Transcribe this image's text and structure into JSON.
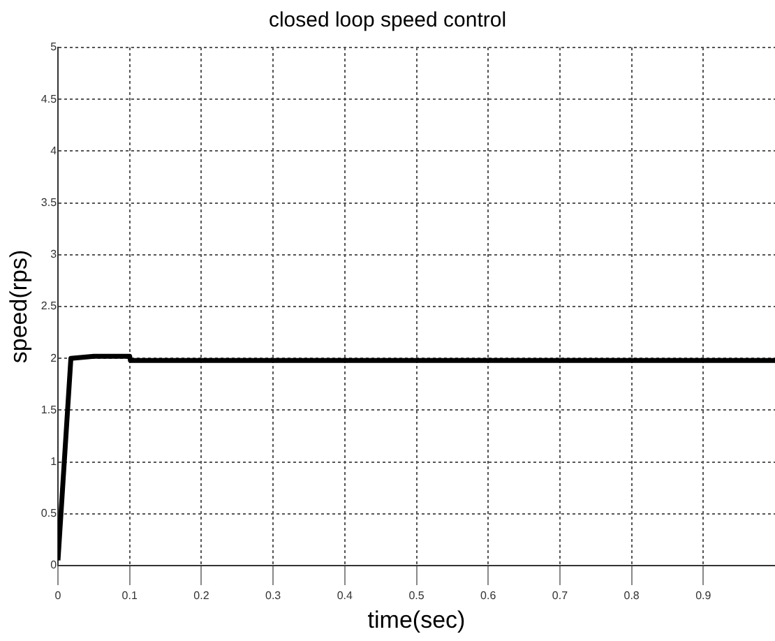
{
  "chart_data": {
    "type": "line",
    "title": "closed loop speed control",
    "xlabel": "time(sec)",
    "ylabel": "speed(rps)",
    "series": [
      {
        "color": "#000000",
        "x": [
          0,
          0.018,
          0.05,
          0.1,
          0.101,
          1.0
        ],
        "values": [
          0.05,
          2.0,
          2.02,
          2.02,
          1.98,
          1.98
        ]
      }
    ],
    "xlim": [
      0,
      1
    ],
    "xticks": [
      0,
      0.1,
      0.2,
      0.3,
      0.4,
      0.5,
      0.6,
      0.7,
      0.8,
      0.9
    ],
    "ylim": [
      0,
      5
    ],
    "yticks": [
      0,
      0.5,
      1,
      1.5,
      2,
      2.5,
      3,
      3.5,
      4,
      4.5,
      5
    ],
    "grid": true,
    "legend": false,
    "marker": "none",
    "line_style": "solid"
  }
}
